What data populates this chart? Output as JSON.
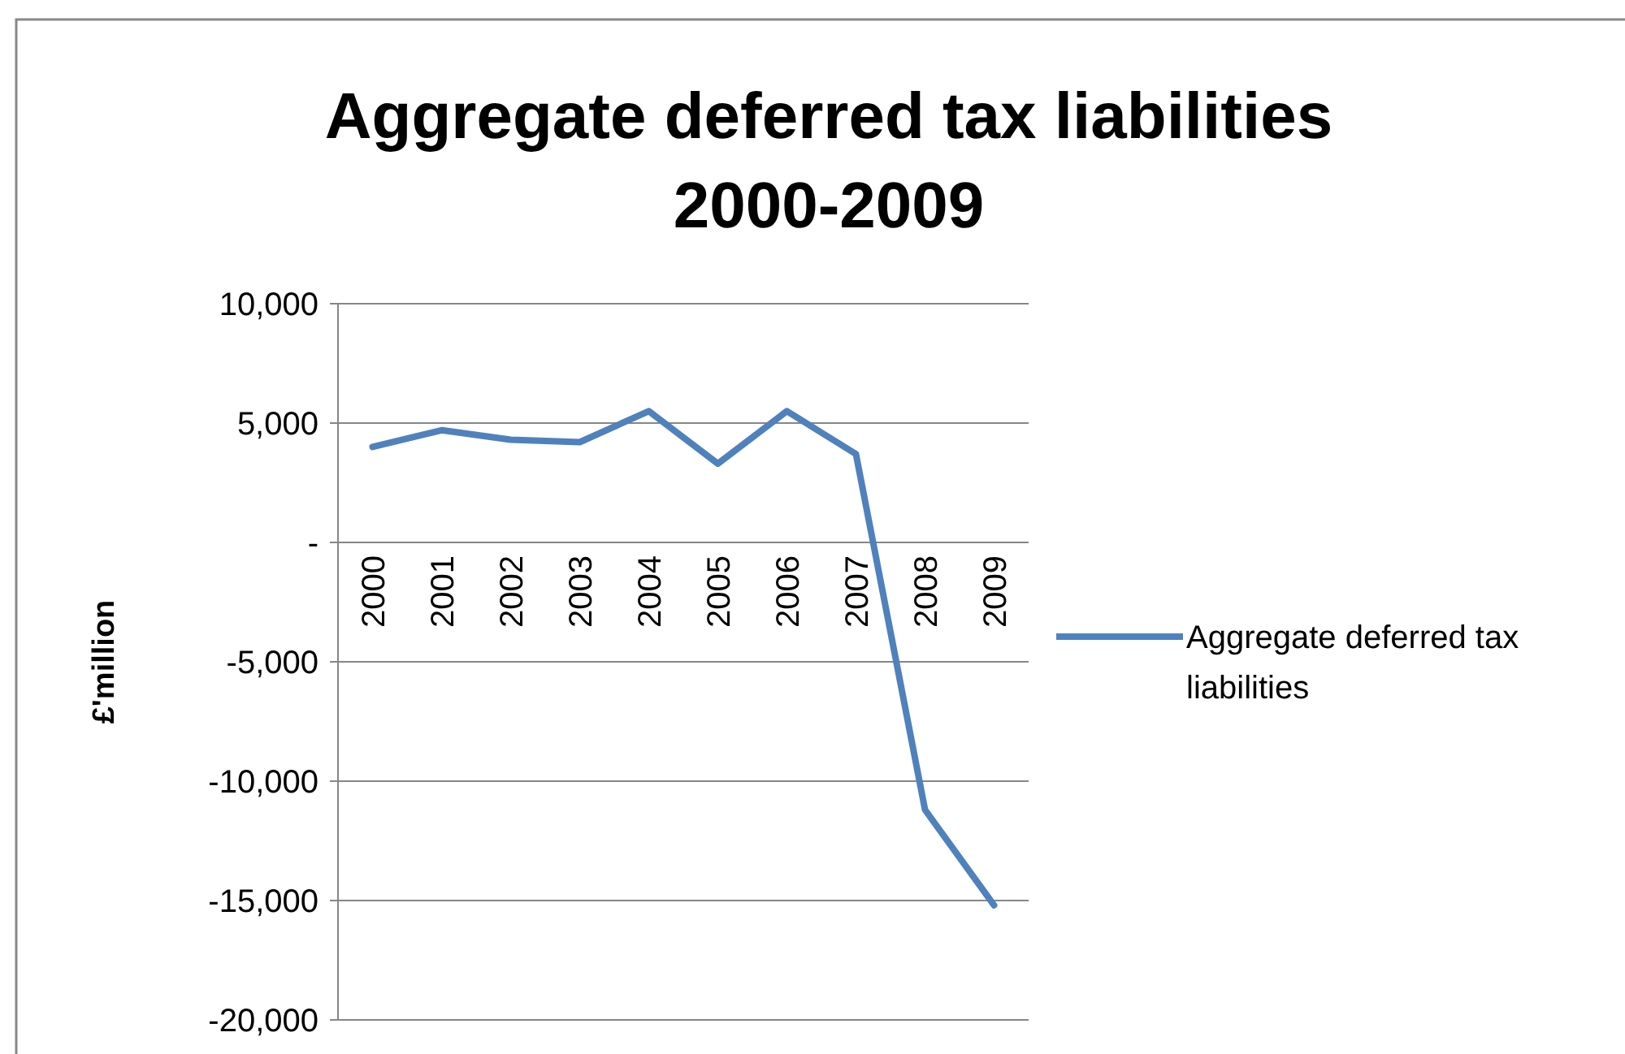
{
  "chart_data": {
    "type": "line",
    "title": "Aggregate deferred tax liabilities 2000-2009",
    "ylabel": "£'million",
    "categories": [
      "2000",
      "2001",
      "2002",
      "2003",
      "2004",
      "2005",
      "2006",
      "2007",
      "2008",
      "2009"
    ],
    "series": [
      {
        "name": "Aggregate deferred tax liabilities",
        "color": "#4f81bd",
        "values": [
          4000,
          4700,
          4300,
          4200,
          5500,
          3300,
          5500,
          3700,
          -11200,
          -15200
        ]
      }
    ],
    "ylim": [
      -20000,
      10000
    ],
    "yticks": [
      {
        "value": -20000,
        "label": "-20,000"
      },
      {
        "value": -15000,
        "label": "-15,000"
      },
      {
        "value": -10000,
        "label": "-10,000"
      },
      {
        "value": -5000,
        "label": "-5,000"
      },
      {
        "value": 0,
        "label": "-"
      },
      {
        "value": 5000,
        "label": "5,000"
      },
      {
        "value": 10000,
        "label": "10,000"
      }
    ],
    "grid": "y",
    "legend": "right",
    "marker": "none",
    "line_style": "solid"
  }
}
